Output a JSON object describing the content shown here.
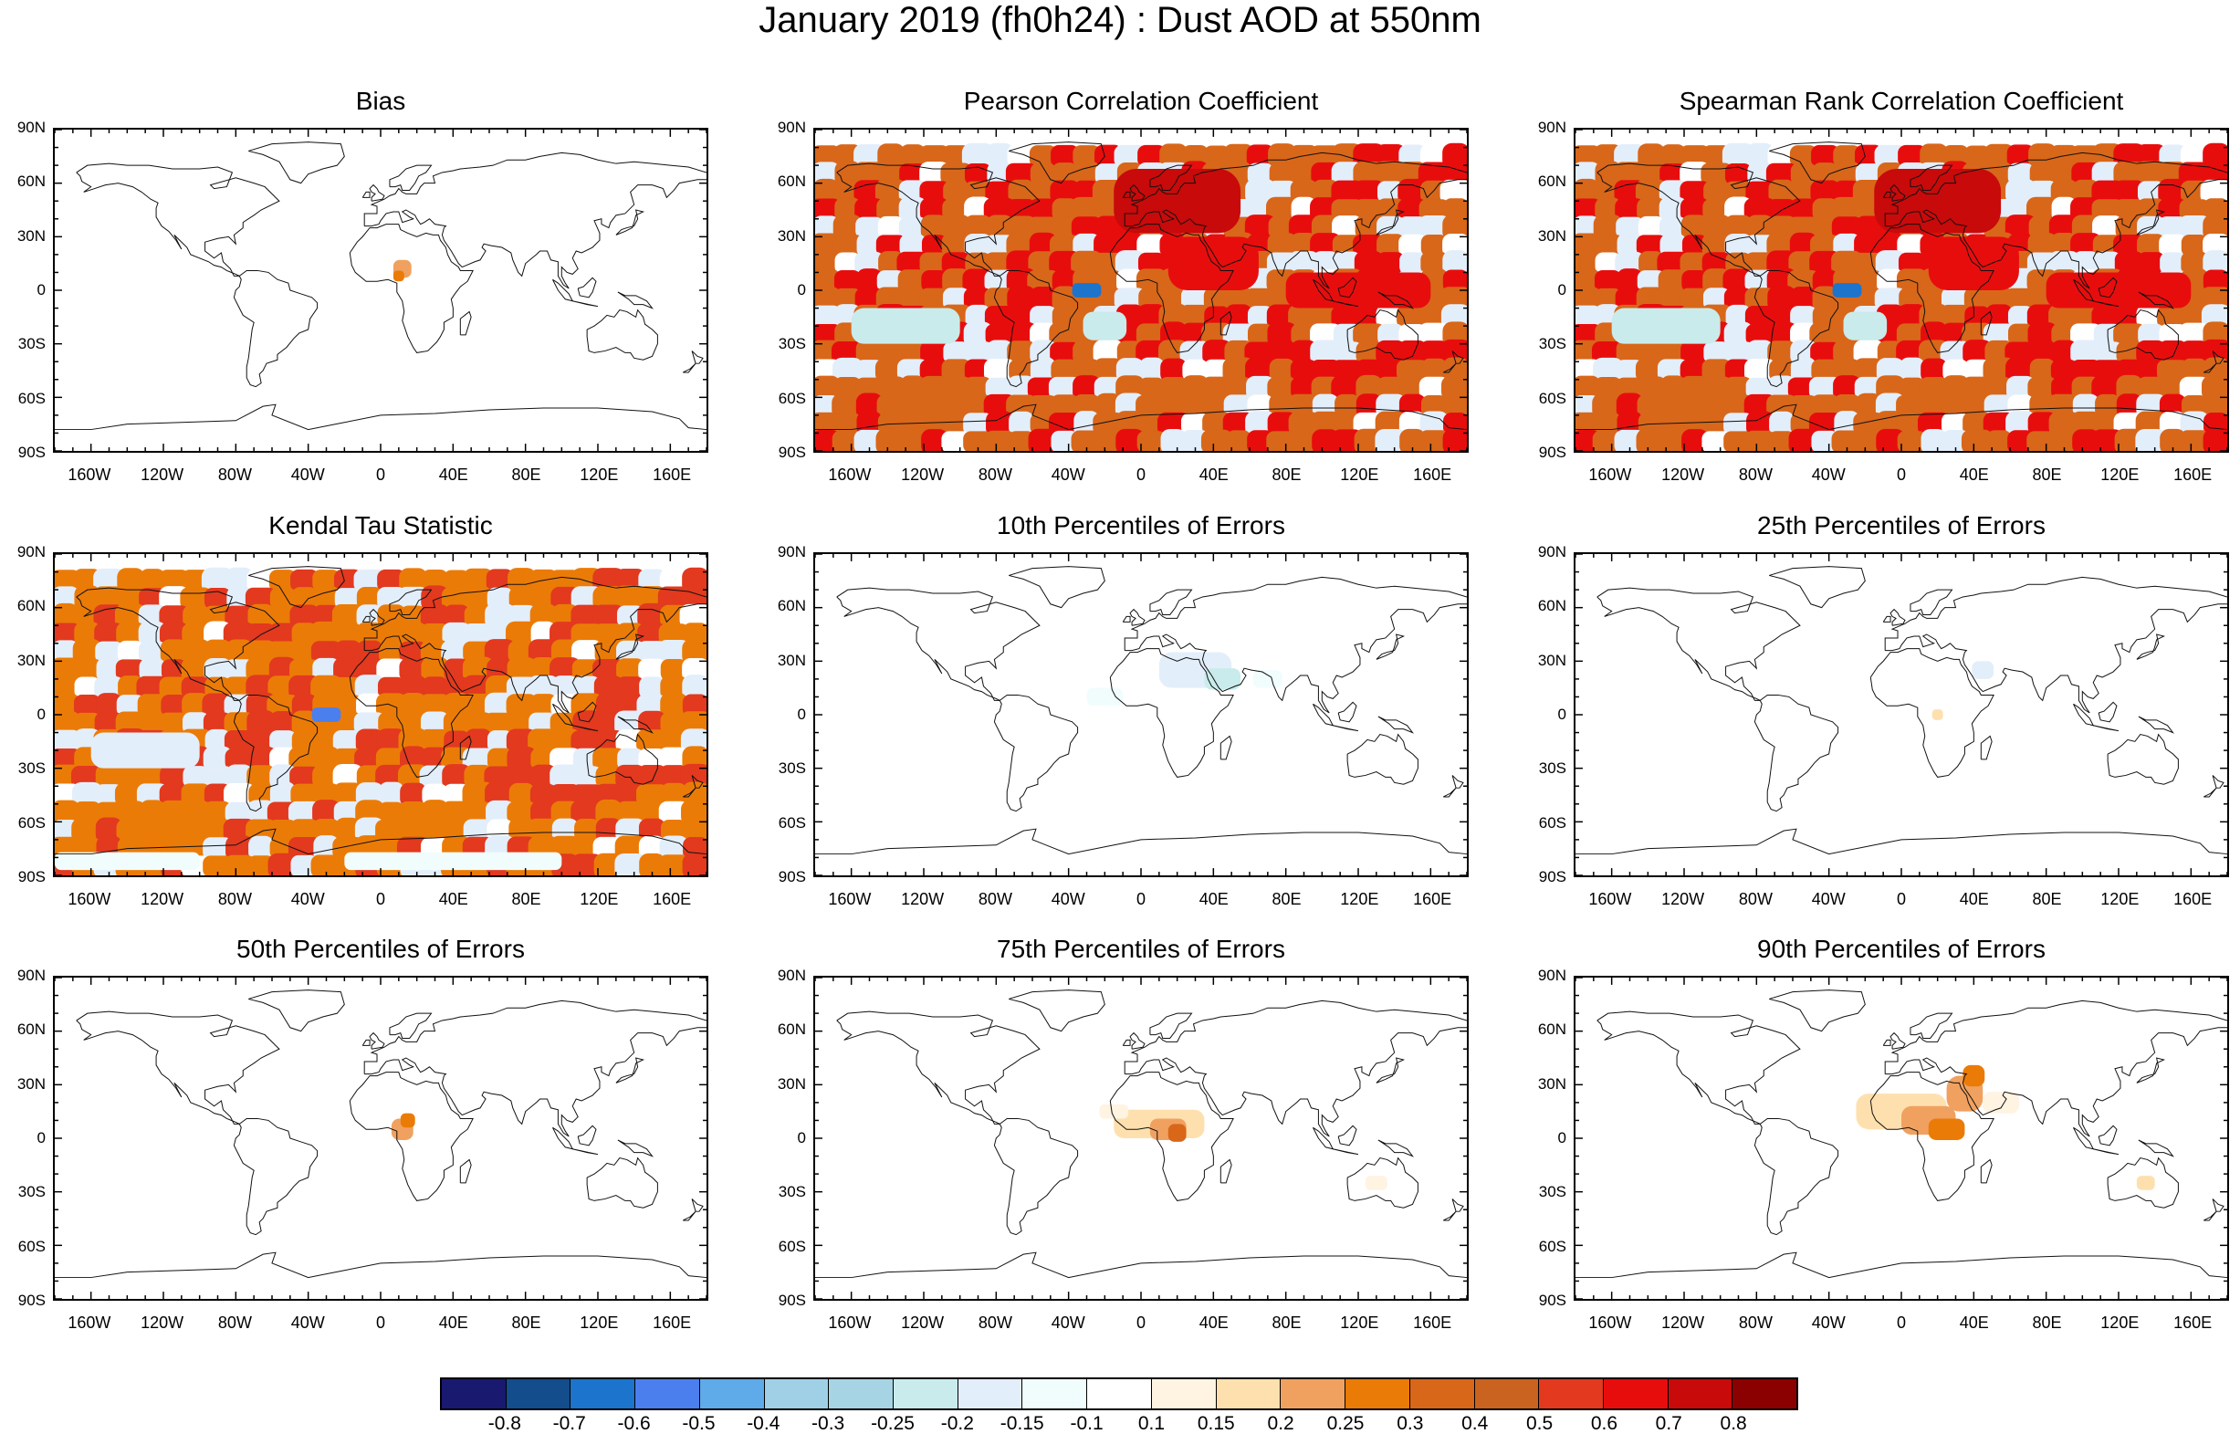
{
  "title": "January 2019 (fh0h24) : Dust AOD at 550nm",
  "lat_labels": [
    "90N",
    "60N",
    "30N",
    "0",
    "30S",
    "60S",
    "90S"
  ],
  "lon_labels": [
    "160W",
    "120W",
    "80W",
    "40W",
    "0",
    "40E",
    "80E",
    "120E",
    "160E"
  ],
  "panels": [
    {
      "title": "Bias",
      "icon": "world-map-icon",
      "pattern": "bias"
    },
    {
      "title": "Pearson Correlation Coefficient",
      "icon": "world-map-icon",
      "pattern": "corr"
    },
    {
      "title": "Spearman Rank Correlation Coefficient",
      "icon": "world-map-icon",
      "pattern": "corr"
    },
    {
      "title": "Kendal Tau Statistic",
      "icon": "world-map-icon",
      "pattern": "tau"
    },
    {
      "title": "10th Percentiles of Errors",
      "icon": "world-map-icon",
      "pattern": "p10"
    },
    {
      "title": "25th Percentiles of Errors",
      "icon": "world-map-icon",
      "pattern": "p25"
    },
    {
      "title": "50th Percentiles of Errors",
      "icon": "world-map-icon",
      "pattern": "p50"
    },
    {
      "title": "75th Percentiles of Errors",
      "icon": "world-map-icon",
      "pattern": "p75"
    },
    {
      "title": "90th Percentiles of Errors",
      "icon": "world-map-icon",
      "pattern": "p90"
    }
  ],
  "colorbar": {
    "colors": [
      "#191970",
      "#134d8c",
      "#1c74cc",
      "#4b7fee",
      "#5faae8",
      "#9fd0e6",
      "#a7d4e4",
      "#c9ebeb",
      "#e3eefb",
      "#f1fdfd",
      "#ffffff",
      "#fff3e2",
      "#fee0af",
      "#f0a160",
      "#eb7b07",
      "#d8671a",
      "#c9631f",
      "#e2391f",
      "#e80d0d",
      "#c80a0a",
      "#8b0000"
    ],
    "labels": [
      "-0.8",
      "-0.7",
      "-0.6",
      "-0.5",
      "-0.4",
      "-0.3",
      "-0.25",
      "-0.2",
      "-0.15",
      "-0.1",
      "0.1",
      "0.15",
      "0.2",
      "0.25",
      "0.3",
      "0.4",
      "0.5",
      "0.6",
      "0.7",
      "0.8"
    ]
  }
}
